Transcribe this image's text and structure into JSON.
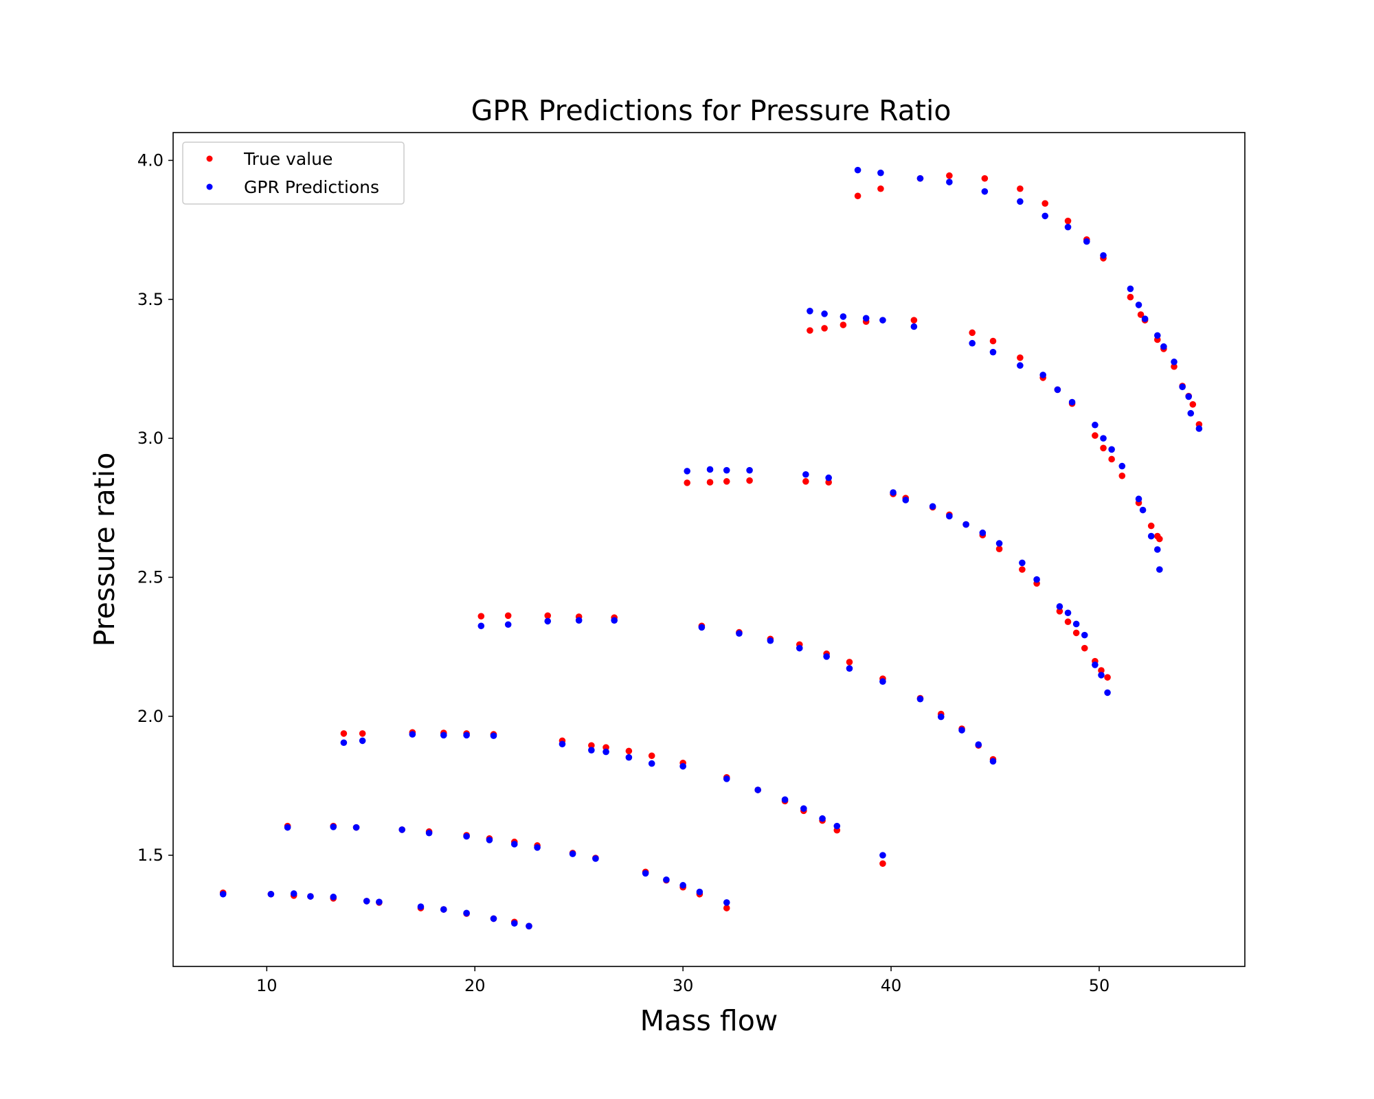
{
  "chart_data": {
    "type": "scatter",
    "title": "GPR Predictions for Pressure Ratio",
    "xlabel": "Mass flow",
    "ylabel": "Pressure ratio",
    "xlim": [
      5.5,
      57
    ],
    "ylim": [
      1.1,
      4.1
    ],
    "xticks": [
      10,
      20,
      30,
      40,
      50
    ],
    "yticks": [
      1.5,
      2.0,
      2.5,
      3.0,
      3.5,
      4.0
    ],
    "xtick_labels": [
      "10",
      "20",
      "30",
      "40",
      "50"
    ],
    "ytick_labels": [
      "1.5",
      "2.0",
      "2.5",
      "3.0",
      "3.5",
      "4.0"
    ],
    "grid": false,
    "legend": "top-left",
    "series": [
      {
        "name": "True value",
        "color": "#ff0000",
        "points": [
          [
            7.9,
            1.365
          ],
          [
            10.2,
            1.36
          ],
          [
            11.3,
            1.355
          ],
          [
            12.1,
            1.352
          ],
          [
            13.2,
            1.345
          ],
          [
            14.8,
            1.335
          ],
          [
            15.4,
            1.33
          ],
          [
            17.4,
            1.31
          ],
          [
            18.5,
            1.305
          ],
          [
            19.6,
            1.29
          ],
          [
            20.9,
            1.272
          ],
          [
            21.9,
            1.26
          ],
          [
            22.6,
            1.245
          ],
          [
            11.0,
            1.605
          ],
          [
            13.2,
            1.605
          ],
          [
            14.3,
            1.6
          ],
          [
            16.5,
            1.592
          ],
          [
            17.8,
            1.585
          ],
          [
            19.6,
            1.572
          ],
          [
            20.7,
            1.56
          ],
          [
            21.9,
            1.548
          ],
          [
            23.0,
            1.535
          ],
          [
            24.7,
            1.508
          ],
          [
            25.8,
            1.49
          ],
          [
            28.2,
            1.44
          ],
          [
            29.2,
            1.41
          ],
          [
            30.0,
            1.385
          ],
          [
            30.8,
            1.36
          ],
          [
            32.1,
            1.31
          ],
          [
            13.7,
            1.938
          ],
          [
            14.6,
            1.938
          ],
          [
            17.0,
            1.942
          ],
          [
            18.5,
            1.94
          ],
          [
            19.6,
            1.938
          ],
          [
            20.9,
            1.935
          ],
          [
            24.2,
            1.912
          ],
          [
            25.6,
            1.895
          ],
          [
            26.3,
            1.888
          ],
          [
            27.4,
            1.875
          ],
          [
            28.5,
            1.858
          ],
          [
            30.0,
            1.832
          ],
          [
            32.1,
            1.78
          ],
          [
            33.6,
            1.735
          ],
          [
            34.9,
            1.695
          ],
          [
            35.8,
            1.66
          ],
          [
            36.7,
            1.625
          ],
          [
            37.4,
            1.59
          ],
          [
            39.6,
            1.47
          ],
          [
            20.3,
            2.36
          ],
          [
            21.6,
            2.362
          ],
          [
            23.5,
            2.362
          ],
          [
            25.0,
            2.358
          ],
          [
            26.7,
            2.355
          ],
          [
            30.9,
            2.325
          ],
          [
            32.7,
            2.302
          ],
          [
            34.2,
            2.278
          ],
          [
            35.6,
            2.258
          ],
          [
            36.9,
            2.225
          ],
          [
            38.0,
            2.195
          ],
          [
            39.6,
            2.135
          ],
          [
            41.4,
            2.065
          ],
          [
            42.4,
            2.008
          ],
          [
            43.4,
            1.955
          ],
          [
            44.2,
            1.895
          ],
          [
            44.9,
            1.845
          ],
          [
            30.2,
            2.84
          ],
          [
            31.3,
            2.842
          ],
          [
            32.1,
            2.845
          ],
          [
            33.2,
            2.848
          ],
          [
            35.9,
            2.845
          ],
          [
            37.0,
            2.842
          ],
          [
            40.1,
            2.8
          ],
          [
            40.7,
            2.785
          ],
          [
            42.0,
            2.752
          ],
          [
            42.8,
            2.725
          ],
          [
            43.6,
            2.69
          ],
          [
            44.4,
            2.652
          ],
          [
            45.2,
            2.602
          ],
          [
            46.3,
            2.528
          ],
          [
            47.0,
            2.478
          ],
          [
            48.1,
            2.378
          ],
          [
            48.5,
            2.34
          ],
          [
            48.9,
            2.3
          ],
          [
            49.3,
            2.245
          ],
          [
            49.8,
            2.198
          ],
          [
            50.1,
            2.165
          ],
          [
            50.4,
            2.14
          ],
          [
            36.1,
            3.388
          ],
          [
            36.8,
            3.396
          ],
          [
            37.7,
            3.408
          ],
          [
            38.8,
            3.42
          ],
          [
            41.1,
            3.425
          ],
          [
            43.9,
            3.38
          ],
          [
            44.9,
            3.35
          ],
          [
            46.2,
            3.29
          ],
          [
            47.3,
            3.218
          ],
          [
            48.0,
            3.175
          ],
          [
            48.7,
            3.125
          ],
          [
            49.8,
            3.01
          ],
          [
            50.2,
            2.965
          ],
          [
            50.6,
            2.925
          ],
          [
            51.1,
            2.865
          ],
          [
            51.9,
            2.768
          ],
          [
            52.5,
            2.685
          ],
          [
            52.8,
            2.648
          ],
          [
            52.9,
            2.638
          ],
          [
            38.4,
            3.872
          ],
          [
            39.5,
            3.898
          ],
          [
            41.4,
            3.935
          ],
          [
            42.8,
            3.945
          ],
          [
            44.5,
            3.935
          ],
          [
            46.2,
            3.898
          ],
          [
            47.4,
            3.845
          ],
          [
            48.5,
            3.782
          ],
          [
            49.4,
            3.715
          ],
          [
            50.2,
            3.648
          ],
          [
            51.5,
            3.508
          ],
          [
            52.0,
            3.445
          ],
          [
            52.2,
            3.425
          ],
          [
            52.8,
            3.355
          ],
          [
            53.1,
            3.322
          ],
          [
            53.6,
            3.258
          ],
          [
            54.0,
            3.188
          ],
          [
            54.3,
            3.152
          ],
          [
            54.5,
            3.122
          ],
          [
            54.8,
            3.05
          ]
        ]
      },
      {
        "name": "GPR Predictions",
        "color": "#0000ff",
        "points": [
          [
            7.9,
            1.36
          ],
          [
            10.2,
            1.36
          ],
          [
            11.3,
            1.362
          ],
          [
            12.1,
            1.352
          ],
          [
            13.2,
            1.35
          ],
          [
            14.8,
            1.335
          ],
          [
            15.4,
            1.332
          ],
          [
            17.4,
            1.315
          ],
          [
            18.5,
            1.305
          ],
          [
            19.6,
            1.292
          ],
          [
            20.9,
            1.272
          ],
          [
            21.9,
            1.255
          ],
          [
            22.6,
            1.245
          ],
          [
            11.0,
            1.6
          ],
          [
            13.2,
            1.602
          ],
          [
            14.3,
            1.6
          ],
          [
            16.5,
            1.592
          ],
          [
            17.8,
            1.58
          ],
          [
            19.6,
            1.568
          ],
          [
            20.7,
            1.555
          ],
          [
            21.9,
            1.54
          ],
          [
            23.0,
            1.528
          ],
          [
            24.7,
            1.505
          ],
          [
            25.8,
            1.488
          ],
          [
            28.2,
            1.435
          ],
          [
            29.2,
            1.412
          ],
          [
            30.0,
            1.392
          ],
          [
            30.8,
            1.368
          ],
          [
            32.1,
            1.33
          ],
          [
            13.7,
            1.905
          ],
          [
            14.6,
            1.912
          ],
          [
            17.0,
            1.935
          ],
          [
            18.5,
            1.932
          ],
          [
            19.6,
            1.932
          ],
          [
            20.9,
            1.93
          ],
          [
            24.2,
            1.9
          ],
          [
            25.6,
            1.878
          ],
          [
            26.3,
            1.872
          ],
          [
            27.4,
            1.852
          ],
          [
            28.5,
            1.83
          ],
          [
            30.0,
            1.82
          ],
          [
            32.1,
            1.775
          ],
          [
            33.6,
            1.735
          ],
          [
            34.9,
            1.7
          ],
          [
            35.8,
            1.668
          ],
          [
            36.7,
            1.632
          ],
          [
            37.4,
            1.605
          ],
          [
            39.6,
            1.5
          ],
          [
            20.3,
            2.325
          ],
          [
            21.6,
            2.33
          ],
          [
            23.5,
            2.342
          ],
          [
            25.0,
            2.345
          ],
          [
            26.7,
            2.345
          ],
          [
            30.9,
            2.32
          ],
          [
            32.7,
            2.298
          ],
          [
            34.2,
            2.272
          ],
          [
            35.6,
            2.245
          ],
          [
            36.9,
            2.215
          ],
          [
            38.0,
            2.172
          ],
          [
            39.6,
            2.125
          ],
          [
            41.4,
            2.062
          ],
          [
            42.4,
            1.998
          ],
          [
            43.4,
            1.95
          ],
          [
            44.2,
            1.898
          ],
          [
            44.9,
            1.838
          ],
          [
            30.2,
            2.882
          ],
          [
            31.3,
            2.888
          ],
          [
            32.1,
            2.885
          ],
          [
            33.2,
            2.885
          ],
          [
            35.9,
            2.87
          ],
          [
            37.0,
            2.858
          ],
          [
            40.1,
            2.805
          ],
          [
            40.7,
            2.778
          ],
          [
            42.0,
            2.755
          ],
          [
            42.8,
            2.72
          ],
          [
            43.6,
            2.69
          ],
          [
            44.4,
            2.66
          ],
          [
            45.2,
            2.622
          ],
          [
            46.3,
            2.552
          ],
          [
            47.0,
            2.492
          ],
          [
            48.1,
            2.395
          ],
          [
            48.5,
            2.372
          ],
          [
            48.9,
            2.332
          ],
          [
            49.3,
            2.292
          ],
          [
            49.8,
            2.185
          ],
          [
            50.1,
            2.148
          ],
          [
            50.4,
            2.085
          ],
          [
            36.1,
            3.458
          ],
          [
            36.8,
            3.448
          ],
          [
            37.7,
            3.438
          ],
          [
            38.8,
            3.432
          ],
          [
            39.6,
            3.425
          ],
          [
            41.1,
            3.402
          ],
          [
            43.9,
            3.342
          ],
          [
            44.9,
            3.31
          ],
          [
            46.2,
            3.262
          ],
          [
            47.3,
            3.228
          ],
          [
            48.0,
            3.175
          ],
          [
            48.7,
            3.13
          ],
          [
            49.8,
            3.048
          ],
          [
            50.2,
            3.0
          ],
          [
            50.6,
            2.96
          ],
          [
            51.1,
            2.9
          ],
          [
            51.9,
            2.782
          ],
          [
            52.1,
            2.742
          ],
          [
            52.5,
            2.648
          ],
          [
            52.8,
            2.6
          ],
          [
            52.9,
            2.528
          ],
          [
            38.4,
            3.965
          ],
          [
            39.5,
            3.955
          ],
          [
            41.4,
            3.935
          ],
          [
            42.8,
            3.922
          ],
          [
            44.5,
            3.888
          ],
          [
            46.2,
            3.852
          ],
          [
            47.4,
            3.8
          ],
          [
            48.5,
            3.76
          ],
          [
            49.4,
            3.708
          ],
          [
            50.2,
            3.658
          ],
          [
            51.5,
            3.538
          ],
          [
            51.9,
            3.48
          ],
          [
            52.2,
            3.43
          ],
          [
            52.8,
            3.37
          ],
          [
            53.1,
            3.33
          ],
          [
            53.6,
            3.275
          ],
          [
            54.0,
            3.185
          ],
          [
            54.3,
            3.15
          ],
          [
            54.4,
            3.09
          ],
          [
            54.8,
            3.035
          ]
        ]
      }
    ]
  }
}
